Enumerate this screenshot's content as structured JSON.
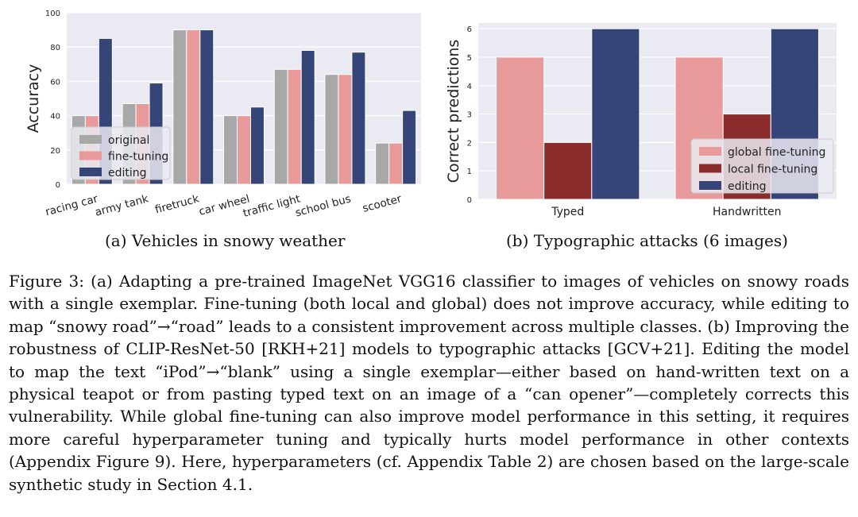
{
  "chart_data": [
    {
      "type": "bar",
      "title": "",
      "xlabel": "",
      "ylabel": "Accuracy",
      "ylim": [
        0,
        100
      ],
      "yticks": [
        0,
        20,
        40,
        60,
        80,
        100
      ],
      "grid": true,
      "legend_position": "lower-left",
      "categories": [
        "racing car",
        "army tank",
        "firetruck",
        "car wheel",
        "traffic light",
        "school bus",
        "scooter"
      ],
      "series": [
        {
          "name": "original",
          "color": "#a8a8a8",
          "values": [
            40,
            47,
            90,
            40,
            67,
            64,
            24
          ]
        },
        {
          "name": "fine-tuning",
          "color": "#e89a9a",
          "values": [
            40,
            47,
            90,
            40,
            67,
            64,
            24
          ]
        },
        {
          "name": "editing",
          "color": "#364578",
          "values": [
            85,
            59,
            90,
            45,
            78,
            77,
            43
          ]
        }
      ]
    },
    {
      "type": "bar",
      "title": "",
      "xlabel": "",
      "ylabel": "Correct predictions",
      "ylim": [
        0,
        6.2
      ],
      "yticks": [
        0,
        1,
        2,
        3,
        4,
        5,
        6
      ],
      "grid": true,
      "legend_position": "lower-right",
      "categories": [
        "Typed",
        "Handwritten"
      ],
      "series": [
        {
          "name": "global fine-tuning",
          "color": "#e89a9a",
          "values": [
            5,
            5
          ]
        },
        {
          "name": "local fine-tuning",
          "color": "#8b2c2c",
          "values": [
            2,
            3
          ]
        },
        {
          "name": "editing",
          "color": "#364578",
          "values": [
            6,
            6
          ]
        }
      ]
    }
  ],
  "subcaptions": {
    "a": "(a) Vehicles in snowy weather",
    "b": "(b) Typographic attacks (6 images)"
  },
  "caption": {
    "figure_label": "Figure 3:",
    "text": "(a) Adapting a pre-trained ImageNet VGG16 classifier to images of vehicles on snowy roads with a single exemplar. Fine-tuning (both local and global) does not improve accuracy, while editing to map “snowy road”→“road” leads to a consistent improvement across multiple classes. (b) Improving the robustness of CLIP-ResNet-50 [RKH+21] models to typographic attacks [GCV+21]. Editing the model to map the text “iPod”→“blank” using a single exemplar—either based on hand-written text on a physical teapot or from pasting typed text on an image of a “can opener”—completely corrects this vulnerability. While global fine-tuning can also improve model performance in this setting, it requires more careful hyperparameter tuning and typically hurts model performance in other contexts (Appendix Figure 9). Here, hyperparameters (cf. Appendix Table 2) are chosen based on the large-scale synthetic study in Section 4.1."
  }
}
